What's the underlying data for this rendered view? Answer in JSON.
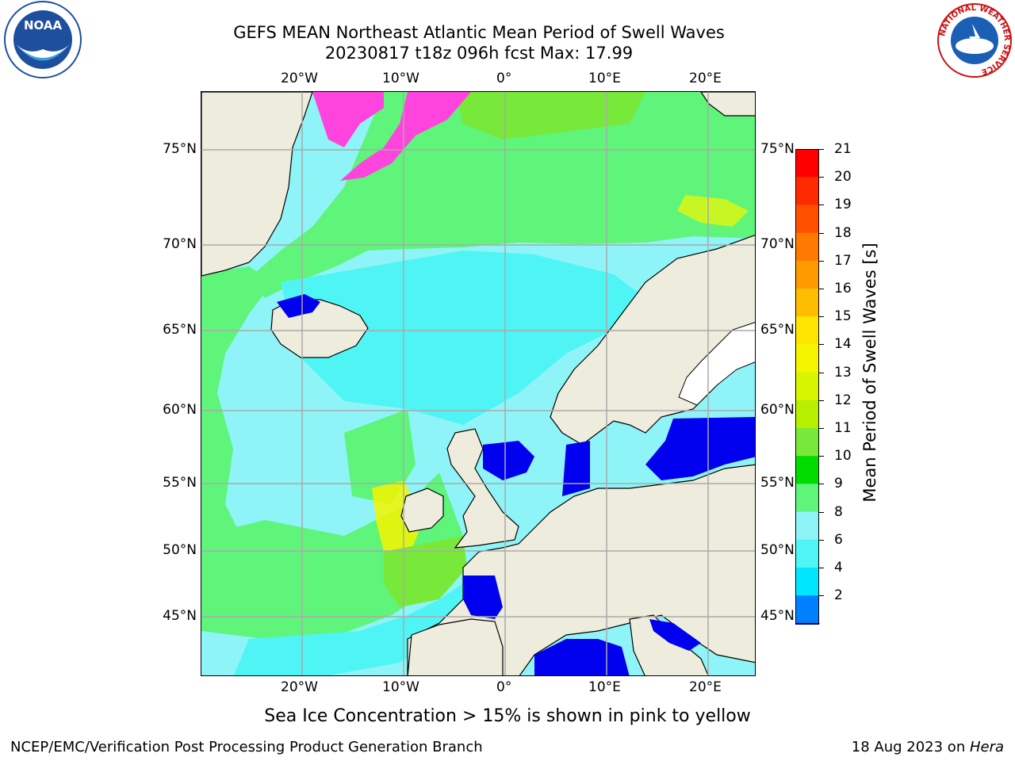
{
  "header": {
    "title_line1": "GEFS MEAN Northeast Atlantic Mean Period of Swell Waves",
    "title_line2": "20230817 t18z 096h fcst   Max: 17.99"
  },
  "logos": {
    "noaa_text": "NOAA",
    "nws_ring_text": "NATIONAL WEATHER SERVICE"
  },
  "axes": {
    "lon_ticks": [
      "20°W",
      "10°W",
      "0°",
      "10°E",
      "20°E"
    ],
    "lat_ticks": [
      "75°N",
      "70°N",
      "65°N",
      "60°N",
      "55°N",
      "50°N",
      "45°N"
    ]
  },
  "colorbar": {
    "label": "Mean Period of Swell Waves [s]",
    "ticks": [
      "21",
      "20",
      "19",
      "18",
      "17",
      "16",
      "15",
      "14",
      "13",
      "12",
      "11",
      "10",
      "9",
      "8",
      "6",
      "4",
      "2"
    ],
    "colors": [
      "#ff0000",
      "#ff2a00",
      "#ff5000",
      "#ff7800",
      "#ff9a00",
      "#ffbd00",
      "#ffe600",
      "#f5f500",
      "#d8f500",
      "#b8ef00",
      "#78e83a",
      "#00dc00",
      "#5ef57a",
      "#8ff4f7",
      "#4ff5f5",
      "#00e6ff",
      "#0080ff",
      "#0000ee"
    ]
  },
  "map_colors": {
    "land": "#eeecdc",
    "ocean_base": "#8ff4f7",
    "swell_green": "#5ef57a",
    "swell_lime": "#78e83a",
    "swell_yellow": "#f5f500",
    "swell_cyan": "#4ff5f5",
    "swell_blue": "#0000ee",
    "ice_pink": "#ff44dd"
  },
  "note": "Sea Ice Concentration > 15% is shown in pink to yellow",
  "footer": {
    "left": "NCEP/EMC/Verification Post Processing Product Generation Branch",
    "right_prefix": "18 Aug 2023 on ",
    "right_host": "Hera"
  }
}
